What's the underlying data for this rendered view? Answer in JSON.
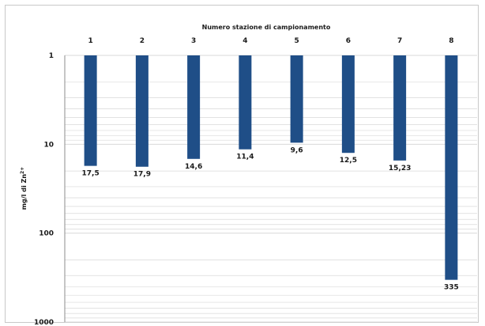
{
  "chart_data": {
    "type": "bar",
    "title": "Numero stazione di campionamento",
    "ylabel": "mg/l di Zn2+",
    "xlabel": "",
    "categories": [
      "1",
      "2",
      "3",
      "4",
      "5",
      "6",
      "7",
      "8"
    ],
    "values": [
      17.5,
      17.9,
      14.6,
      11.4,
      9.6,
      12.5,
      15.23,
      335
    ],
    "data_labels": [
      "17,5",
      "17,9",
      "14,6",
      "11,4",
      "9,6",
      "12,5",
      "15,23",
      "335"
    ],
    "y_scale": "log",
    "y_reversed": true,
    "ylim": [
      1,
      1000
    ],
    "y_ticks": [
      "1",
      "10",
      "100",
      "1000"
    ],
    "x_axis_position": "top",
    "grid": true,
    "bar_color": "#1f4e87",
    "grid_color": "#d9d9d9",
    "axis_color": "#8c8c8c"
  }
}
